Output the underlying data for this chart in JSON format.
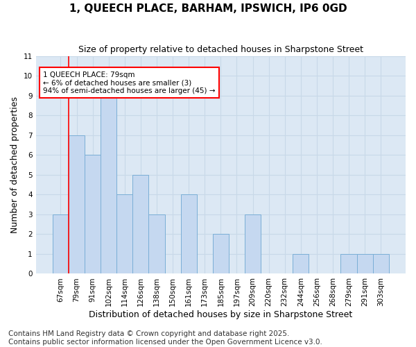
{
  "title1": "1, QUEECH PLACE, BARHAM, IPSWICH, IP6 0GD",
  "title2": "Size of property relative to detached houses in Sharpstone Street",
  "xlabel": "Distribution of detached houses by size in Sharpstone Street",
  "ylabel": "Number of detached properties",
  "categories": [
    "67sqm",
    "79sqm",
    "91sqm",
    "102sqm",
    "114sqm",
    "126sqm",
    "138sqm",
    "150sqm",
    "161sqm",
    "173sqm",
    "185sqm",
    "197sqm",
    "209sqm",
    "220sqm",
    "232sqm",
    "244sqm",
    "256sqm",
    "268sqm",
    "279sqm",
    "291sqm",
    "303sqm"
  ],
  "values": [
    3,
    7,
    6,
    9,
    4,
    5,
    3,
    0,
    4,
    0,
    2,
    0,
    3,
    0,
    0,
    1,
    0,
    0,
    1,
    1,
    1
  ],
  "bar_color": "#c5d8f0",
  "bar_edge_color": "#7aaed6",
  "annotation_text": "1 QUEECH PLACE: 79sqm\n← 6% of detached houses are smaller (3)\n94% of semi-detached houses are larger (45) →",
  "annotation_box_color": "white",
  "annotation_box_edge": "red",
  "vline_color": "red",
  "vline_x_idx": 1,
  "ylim": [
    0,
    11
  ],
  "yticks": [
    0,
    1,
    2,
    3,
    4,
    5,
    6,
    7,
    8,
    9,
    10,
    11
  ],
  "grid_color": "#c8d8e8",
  "bg_color": "#dce8f4",
  "footer": "Contains HM Land Registry data © Crown copyright and database right 2025.\nContains public sector information licensed under the Open Government Licence v3.0.",
  "title_fontsize": 11,
  "subtitle_fontsize": 9,
  "tick_fontsize": 7.5,
  "label_fontsize": 9,
  "footer_fontsize": 7.5
}
